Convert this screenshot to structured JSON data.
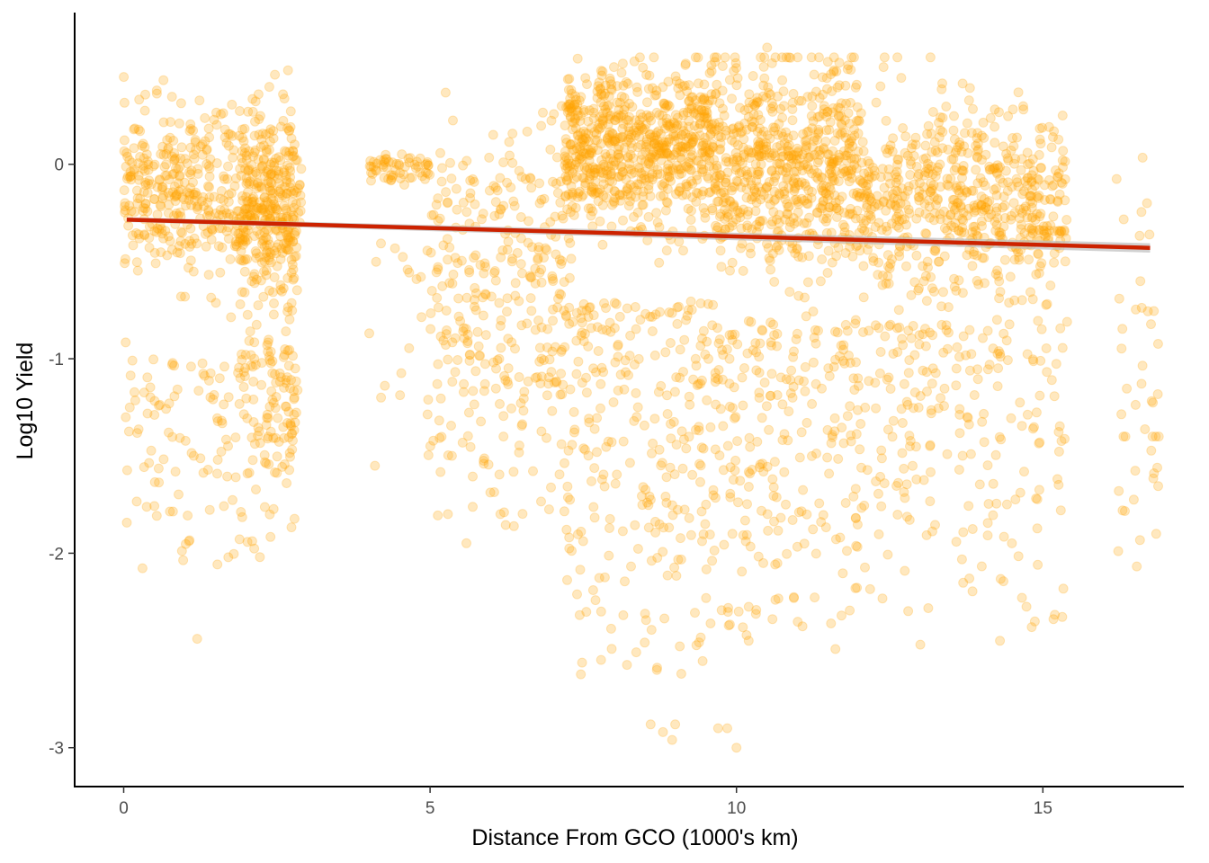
{
  "chart_data": {
    "type": "scatter",
    "title": "",
    "xlabel": "Distance From GCO (1000's km)",
    "ylabel": "Log10 Yield",
    "xlim": [
      -0.8,
      17.3
    ],
    "ylim": [
      -3.2,
      0.78
    ],
    "x_ticks": [
      0,
      5,
      10,
      15
    ],
    "x_tick_labels": [
      "0",
      "5",
      "10",
      "15"
    ],
    "y_ticks": [
      -3,
      -2,
      -1,
      0
    ],
    "y_tick_labels": [
      "-3",
      "-2",
      "-1",
      "0"
    ],
    "grid": false,
    "legend": "none",
    "point_color": "#FFA500",
    "point_opacity": 0.25,
    "trend_color": "#CC2200",
    "trend_band_color": "#BEBEBE",
    "trend_line": {
      "x": [
        0.05,
        16.75
      ],
      "y": [
        -0.285,
        -0.43
      ]
    },
    "clusters": [
      {
        "x": [
          0.0,
          2.9
        ],
        "center": -0.15,
        "spread": 0.22,
        "n": 520,
        "low_tail": [
          -2.1,
          -1.0
        ],
        "tail_n": 140
      },
      {
        "x": [
          1.9,
          2.8
        ],
        "center": -0.3,
        "spread": 0.25,
        "n": 180,
        "low_tail": [
          -1.8,
          -0.9
        ],
        "tail_n": 80
      },
      {
        "x": [
          4.0,
          5.0
        ],
        "center": -0.02,
        "spread": 0.04,
        "n": 60,
        "low_tail": [
          -1.6,
          -0.4
        ],
        "tail_n": 18
      },
      {
        "x": [
          5.0,
          7.2
        ],
        "center": -0.45,
        "spread": 0.35,
        "n": 220,
        "low_tail": [
          -2.0,
          -0.8
        ],
        "tail_n": 110
      },
      {
        "x": [
          7.2,
          9.6
        ],
        "center": 0.08,
        "spread": 0.2,
        "n": 700,
        "low_tail": [
          -2.7,
          -0.7
        ],
        "tail_n": 260
      },
      {
        "x": [
          9.6,
          12.0
        ],
        "center": 0.0,
        "spread": 0.28,
        "n": 650,
        "low_tail": [
          -2.5,
          -0.8
        ],
        "tail_n": 240
      },
      {
        "x": [
          12.0,
          15.4
        ],
        "center": -0.2,
        "spread": 0.25,
        "n": 620,
        "low_tail": [
          -2.4,
          -0.8
        ],
        "tail_n": 220
      },
      {
        "x": [
          16.2,
          16.9
        ],
        "center": -0.9,
        "spread": 0.5,
        "n": 30,
        "low_tail": [
          -2.3,
          -1.4
        ],
        "tail_n": 12
      }
    ],
    "points": [
      [
        8.6,
        -2.88
      ],
      [
        8.8,
        -2.92
      ],
      [
        8.95,
        -2.96
      ],
      [
        9.0,
        -2.88
      ],
      [
        9.7,
        -2.9
      ],
      [
        9.85,
        -2.9
      ],
      [
        10.0,
        -3.0
      ],
      [
        1.2,
        -2.44
      ],
      [
        8.7,
        -2.6
      ],
      [
        9.1,
        -2.62
      ],
      [
        10.2,
        -2.45
      ],
      [
        13.0,
        -2.47
      ],
      [
        14.3,
        -2.45
      ],
      [
        0.1,
        -1.25
      ],
      [
        4.1,
        -1.55
      ],
      [
        4.2,
        -1.2
      ],
      [
        16.3,
        -1.78
      ],
      [
        16.85,
        -1.9
      ],
      [
        16.7,
        -0.2
      ],
      [
        12.4,
        0.5
      ],
      [
        10.5,
        0.6
      ],
      [
        8.0,
        0.5
      ],
      [
        2.2,
        0.36
      ],
      [
        2.6,
        0.36
      ],
      [
        14.6,
        0.37
      ]
    ]
  }
}
